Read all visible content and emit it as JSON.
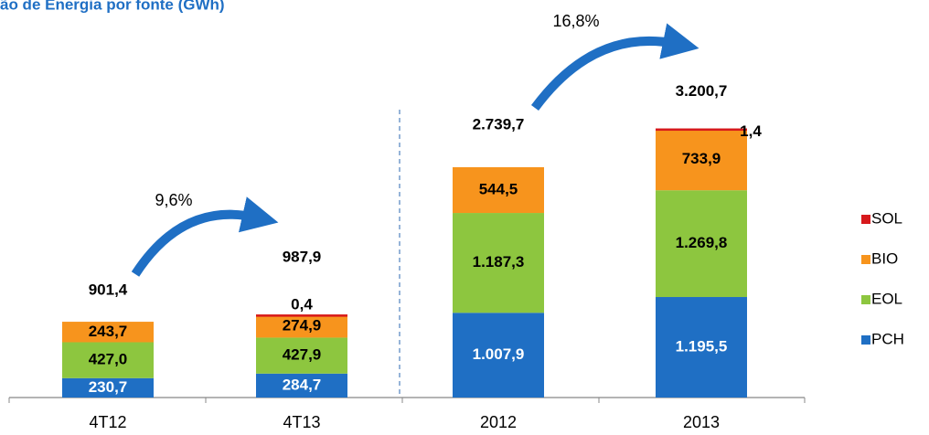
{
  "chart_data": {
    "type": "stacked_bar",
    "title": "ão de Energia por fonte (GWh)",
    "categories": [
      "4T12",
      "4T13",
      "2012",
      "2013"
    ],
    "series": [
      {
        "name": "PCH",
        "color": "#1f6fc4",
        "values": [
          230.7,
          284.7,
          1007.9,
          1195.5
        ],
        "value_labels": [
          "230,7",
          "284,7",
          "1.007,9",
          "1.195,5"
        ]
      },
      {
        "name": "EOL",
        "color": "#8dc63f",
        "values": [
          427.0,
          427.9,
          1187.3,
          1269.8
        ],
        "value_labels": [
          "427,0",
          "427,9",
          "1.187,3",
          "1.269,8"
        ]
      },
      {
        "name": "BIO",
        "color": "#f7941d",
        "values": [
          243.7,
          274.9,
          544.5,
          733.9
        ],
        "value_labels": [
          "243,7",
          "274,9",
          "544,5",
          "733,9"
        ]
      },
      {
        "name": "SOL",
        "color": "#d7191c",
        "values": [
          null,
          0.4,
          null,
          1.4
        ],
        "value_labels": [
          null,
          "0,4",
          null,
          "1,4"
        ]
      }
    ],
    "totals": [
      901.4,
      987.9,
      2739.7,
      3200.7
    ],
    "total_labels": [
      "901,4",
      "987,9",
      "2.739,7",
      "3.200,7"
    ],
    "annotations": [
      "9,6%",
      "16,8%"
    ],
    "ylim": [
      0,
      3500
    ],
    "legend": "right"
  }
}
